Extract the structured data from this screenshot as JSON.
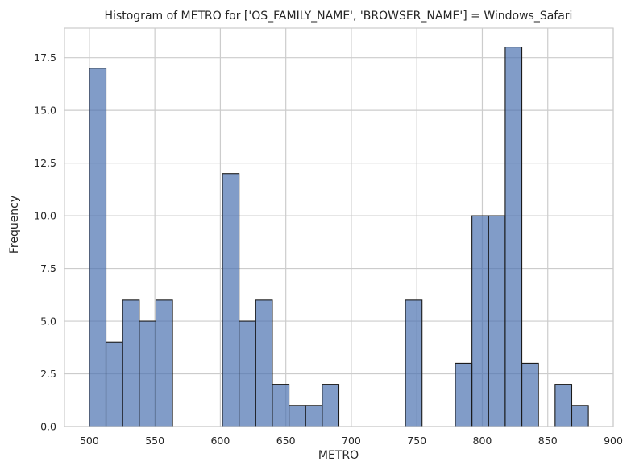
{
  "chart_data": {
    "type": "bar",
    "title": "Histogram of METRO for ['OS_FAMILY_NAME', 'BROWSER_NAME'] = Windows_Safari",
    "xlabel": "METRO",
    "ylabel": "Frequency",
    "xlim": [
      481,
      900
    ],
    "ylim": [
      0,
      18.9
    ],
    "xticks": [
      500,
      550,
      600,
      650,
      700,
      750,
      800,
      850,
      900
    ],
    "yticks": [
      0,
      2.5,
      5,
      7.5,
      10,
      12.5,
      15,
      17.5
    ],
    "ytick_labels": [
      "0.0",
      "2.5",
      "5.0",
      "7.5",
      "10.0",
      "12.5",
      "15.0",
      "17.5"
    ],
    "grid": true,
    "bar_color": "#4c72b0",
    "bin_width": 12.7,
    "bins": [
      {
        "start": 500.0,
        "count": 17
      },
      {
        "start": 512.7,
        "count": 4
      },
      {
        "start": 525.4,
        "count": 6
      },
      {
        "start": 538.1,
        "count": 5
      },
      {
        "start": 550.8,
        "count": 6
      },
      {
        "start": 601.6,
        "count": 12
      },
      {
        "start": 614.3,
        "count": 5
      },
      {
        "start": 627.0,
        "count": 6
      },
      {
        "start": 639.7,
        "count": 2
      },
      {
        "start": 652.4,
        "count": 1
      },
      {
        "start": 665.1,
        "count": 1
      },
      {
        "start": 677.8,
        "count": 2
      },
      {
        "start": 741.3,
        "count": 6
      },
      {
        "start": 779.4,
        "count": 3
      },
      {
        "start": 792.1,
        "count": 10
      },
      {
        "start": 804.8,
        "count": 10
      },
      {
        "start": 817.5,
        "count": 18
      },
      {
        "start": 830.2,
        "count": 3
      },
      {
        "start": 855.6,
        "count": 2
      },
      {
        "start": 868.3,
        "count": 1
      }
    ]
  }
}
